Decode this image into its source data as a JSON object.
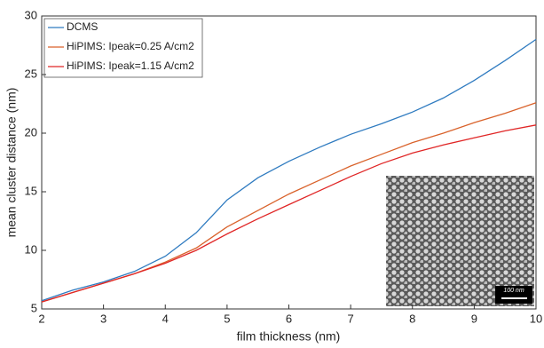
{
  "chart_data": {
    "type": "line",
    "x_label": "film thickness (nm)",
    "y_label": "mean cluster distance (nm)",
    "x": [
      2,
      2.5,
      3,
      3.5,
      4,
      4.5,
      5,
      5.5,
      6,
      6.5,
      7,
      7.5,
      8,
      8.5,
      9,
      9.5,
      10
    ],
    "series": [
      {
        "name": "DCMS",
        "color": "#2f7bc0",
        "values": [
          5.7,
          6.6,
          7.3,
          8.2,
          9.5,
          11.5,
          14.3,
          16.2,
          17.6,
          18.8,
          19.9,
          20.8,
          21.8,
          23.0,
          24.5,
          26.2,
          28.0
        ]
      },
      {
        "name": "HiPIMS: Ipeak=0.25 A/cm2",
        "color": "#d9622b",
        "values": [
          5.6,
          6.4,
          7.2,
          8.0,
          9.0,
          10.2,
          12.0,
          13.4,
          14.8,
          16.0,
          17.2,
          18.2,
          19.2,
          20.0,
          20.9,
          21.7,
          22.6
        ]
      },
      {
        "name": "HiPIMS: Ipeak=1.15 A/cm2",
        "color": "#e02626",
        "values": [
          5.6,
          6.4,
          7.2,
          8.0,
          8.9,
          10.0,
          11.4,
          12.7,
          13.9,
          15.1,
          16.3,
          17.4,
          18.3,
          19.0,
          19.6,
          20.2,
          20.7
        ]
      }
    ],
    "xlim": [
      2,
      10
    ],
    "xticks": [
      2,
      3,
      4,
      5,
      6,
      7,
      8,
      9,
      10
    ],
    "ylim": [
      5,
      30
    ],
    "yticks": [
      5,
      10,
      15,
      20,
      25,
      30
    ],
    "legend": "upper left",
    "inset_scale_label": "100 nm"
  }
}
